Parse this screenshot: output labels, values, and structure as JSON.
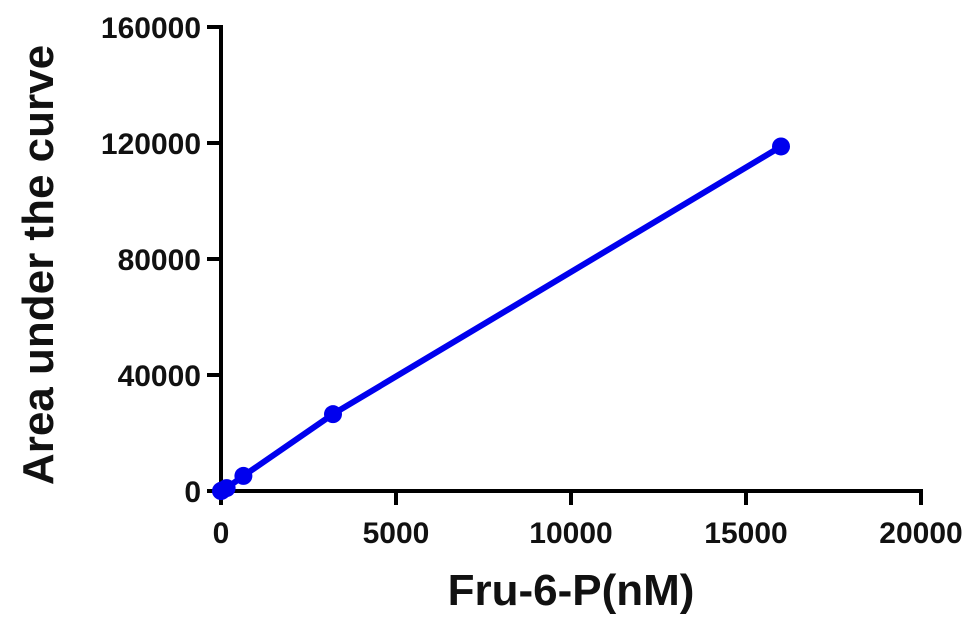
{
  "chart_data": {
    "type": "line",
    "title": "",
    "xlabel": "Fru-6-P(nM)",
    "ylabel": "Area under the curve",
    "xlim": [
      0,
      20000
    ],
    "ylim": [
      0,
      160000
    ],
    "xticks": [
      0,
      5000,
      10000,
      15000,
      20000
    ],
    "yticks": [
      0,
      40000,
      80000,
      120000,
      160000
    ],
    "grid": false,
    "legend": "none",
    "series": [
      {
        "color": "#0000ee",
        "marker": "circle",
        "x": [
          0,
          32,
          160,
          640,
          3200,
          16000
        ],
        "y": [
          0,
          200,
          1000,
          5200,
          26500,
          118800
        ]
      }
    ]
  }
}
